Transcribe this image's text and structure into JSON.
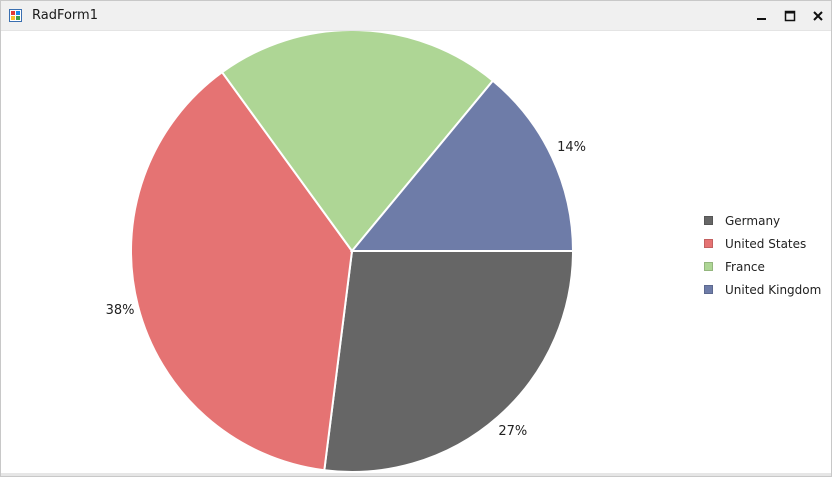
{
  "window": {
    "title": "RadForm1",
    "icons": {
      "app": "app-window-icon",
      "minimize": "minimize-icon",
      "maximize": "maximize-icon",
      "close": "close-icon"
    }
  },
  "chart_data": {
    "type": "pie",
    "title": "",
    "categories": [
      "Germany",
      "United States",
      "France",
      "United Kingdom"
    ],
    "values": [
      27,
      38,
      21,
      14
    ],
    "labels": [
      "27%",
      "38%",
      "",
      "14%"
    ],
    "colors": [
      "#666666",
      "#e57373",
      "#aed695",
      "#6e7ca8"
    ],
    "legend_position": "right"
  }
}
